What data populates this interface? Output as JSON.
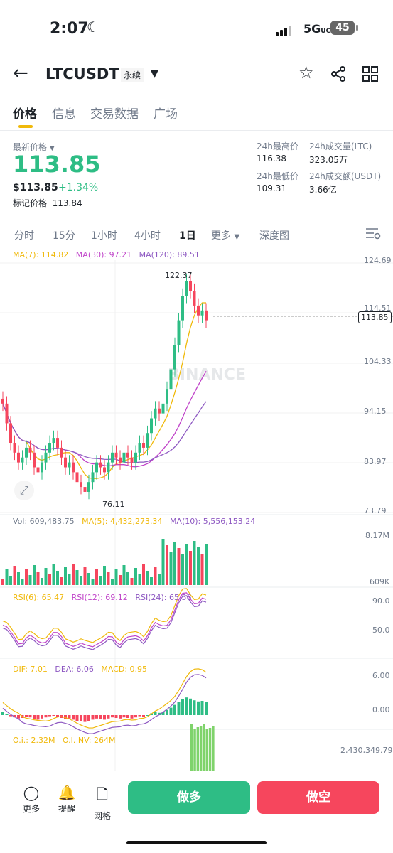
{
  "status": {
    "time": "2:07",
    "network": "5G",
    "network_suffix": "UC",
    "battery": "45"
  },
  "header": {
    "symbol": "LTCUSDT",
    "contract_type": "永续"
  },
  "tabs": [
    {
      "label": "价格"
    },
    {
      "label": "信息"
    },
    {
      "label": "交易数据"
    },
    {
      "label": "广场"
    }
  ],
  "ticker": {
    "last_price_label": "最新价格",
    "last_price": "113.85",
    "usd_price": "$113.85",
    "change": "+1.34%",
    "mark_label": "标记价格",
    "mark_price": "113.84",
    "high_label": "24h最高价",
    "high": "116.38",
    "low_label": "24h最低价",
    "low": "109.31",
    "vol_ltc_label": "24h成交量(LTC)",
    "vol_ltc": "323.05万",
    "vol_usdt_label": "24h成交额(USDT)",
    "vol_usdt": "3.66亿"
  },
  "intervals": [
    {
      "label": "分时"
    },
    {
      "label": "15分"
    },
    {
      "label": "1小时"
    },
    {
      "label": "4小时"
    },
    {
      "label": "1日"
    },
    {
      "label": "更多"
    },
    {
      "label": "深度图"
    }
  ],
  "chart": {
    "ma_legend": [
      {
        "text": "MA(7): 114.82",
        "color": "#f0b90b"
      },
      {
        "text": "MA(30): 97.21",
        "color": "#c043c9"
      },
      {
        "text": "MA(120): 89.51",
        "color": "#8e59c2"
      }
    ],
    "price_axis": [
      "124.69",
      "114.51",
      "104.33",
      "94.15",
      "83.97",
      "73.79"
    ],
    "high_marker": "122.37",
    "low_marker": "76.11",
    "current_price_tag": "113.85",
    "watermark": "BINANCE",
    "vol_legend": [
      {
        "text": "Vol: 609,483.75",
        "color": "#707a8a"
      },
      {
        "text": "MA(5): 4,432,273.34",
        "color": "#f0b90b"
      },
      {
        "text": "MA(10): 5,556,153.24",
        "color": "#8e59c2"
      }
    ],
    "vol_axis": [
      "8.17M",
      "609K"
    ],
    "rsi_legend": [
      {
        "text": "RSI(6): 65.47",
        "color": "#f0b90b"
      },
      {
        "text": "RSI(12): 69.12",
        "color": "#c043c9"
      },
      {
        "text": "RSI(24): 65.56",
        "color": "#8e59c2"
      }
    ],
    "rsi_axis": [
      "90.0",
      "50.0"
    ],
    "macd_legend": [
      {
        "text": "DIF: 7.01",
        "color": "#f0b90b"
      },
      {
        "text": "DEA: 6.06",
        "color": "#8e59c2"
      },
      {
        "text": "MACD: 0.95",
        "color": "#f0b90b"
      }
    ],
    "macd_axis": [
      "6.00",
      "0.00"
    ],
    "oi_legend": [
      {
        "text": "O.i.: 2.32M",
        "color": "#f0b90b"
      },
      {
        "text": "O.I. NV: 264M",
        "color": "#f0b90b"
      }
    ],
    "oi_axis": "2,430,349.79"
  },
  "bottom": {
    "more": "更多",
    "alert": "提醒",
    "grid": "网格",
    "long": "做多",
    "short": "做空"
  },
  "colors": {
    "up": "#2ebd85",
    "down": "#f6465d",
    "accent": "#f0b90b"
  }
}
